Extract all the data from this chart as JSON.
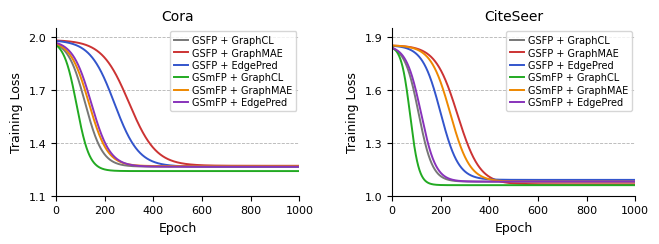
{
  "cora": {
    "title": "Cora",
    "ylabel": "Training Loss",
    "xlabel": "Epoch",
    "ylim": [
      1.1,
      2.05
    ],
    "yticks": [
      1.1,
      1.4,
      1.7,
      2.0
    ],
    "xlim": [
      0,
      1000
    ],
    "xticks": [
      0,
      200,
      400,
      600,
      800,
      1000
    ],
    "series": [
      {
        "label": "GSFP + GraphCL",
        "color": "#777777",
        "shift": 120,
        "speed": 0.028,
        "start": 1.985,
        "end": 1.265
      },
      {
        "label": "GSFP + GraphMAE",
        "color": "#cc3333",
        "shift": 300,
        "speed": 0.018,
        "start": 1.985,
        "end": 1.27
      },
      {
        "label": "GSFP + EdgePred",
        "color": "#3355cc",
        "shift": 240,
        "speed": 0.02,
        "start": 1.985,
        "end": 1.265
      },
      {
        "label": "GSmFP + GraphCL",
        "color": "#22aa22",
        "shift": 85,
        "speed": 0.038,
        "start": 1.985,
        "end": 1.24
      },
      {
        "label": "GSmFP + GraphMAE",
        "color": "#ee8800",
        "shift": 135,
        "speed": 0.026,
        "start": 1.985,
        "end": 1.268
      },
      {
        "label": "GSmFP + EdgePred",
        "color": "#8833bb",
        "shift": 145,
        "speed": 0.026,
        "start": 1.985,
        "end": 1.265
      }
    ]
  },
  "citeseer": {
    "title": "CiteSeer",
    "ylabel": "Training Loss",
    "xlabel": "Epoch",
    "ylim": [
      1.0,
      1.95
    ],
    "yticks": [
      1.0,
      1.3,
      1.6,
      1.9
    ],
    "xlim": [
      0,
      1000
    ],
    "xticks": [
      0,
      200,
      400,
      600,
      800,
      1000
    ],
    "series": [
      {
        "label": "GSFP + GraphCL",
        "color": "#777777",
        "shift": 110,
        "speed": 0.035,
        "start": 1.855,
        "end": 1.08
      },
      {
        "label": "GSFP + GraphMAE",
        "color": "#cc3333",
        "shift": 270,
        "speed": 0.022,
        "start": 1.855,
        "end": 1.065
      },
      {
        "label": "GSFP + EdgePred",
        "color": "#3355cc",
        "shift": 200,
        "speed": 0.027,
        "start": 1.855,
        "end": 1.09
      },
      {
        "label": "GSmFP + GraphCL",
        "color": "#22aa22",
        "shift": 75,
        "speed": 0.055,
        "start": 1.855,
        "end": 1.06
      },
      {
        "label": "GSmFP + GraphMAE",
        "color": "#ee8800",
        "shift": 240,
        "speed": 0.025,
        "start": 1.855,
        "end": 1.08
      },
      {
        "label": "GSmFP + EdgePred",
        "color": "#8833bb",
        "shift": 120,
        "speed": 0.033,
        "start": 1.855,
        "end": 1.08
      }
    ]
  }
}
